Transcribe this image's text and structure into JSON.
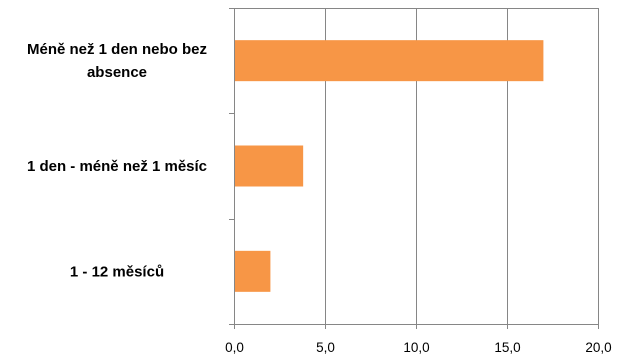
{
  "chart_data": {
    "type": "bar",
    "orientation": "horizontal",
    "categories": [
      [
        "Méně než 1 den nebo bez",
        "absence"
      ],
      [
        "1 den - méně než 1 měsíc"
      ],
      [
        "1 - 12 měsíců"
      ]
    ],
    "values": [
      17.0,
      3.8,
      2.0
    ],
    "xlim": [
      0,
      20
    ],
    "xticks": [
      0,
      5,
      10,
      15,
      20
    ],
    "xtick_labels": [
      "0,0",
      "5,0",
      "10,0",
      "15,0",
      "20,0"
    ],
    "grid": "vertical",
    "legend": "none",
    "title": "",
    "xlabel": "",
    "ylabel": "",
    "colors": {
      "bar": "#F79646",
      "grid": "#868686",
      "axis": "#868686"
    }
  }
}
